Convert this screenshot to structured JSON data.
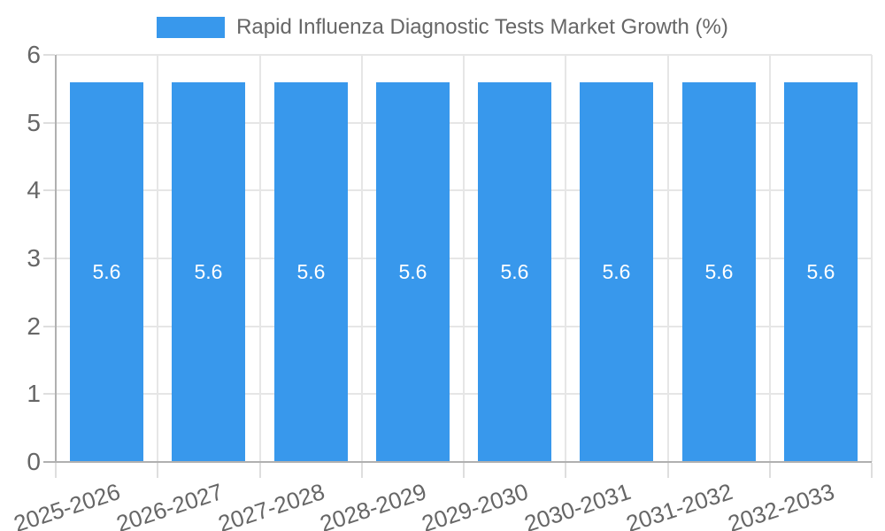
{
  "chart_data": {
    "type": "bar",
    "title": "Rapid Influenza Diagnostic Tests Market Growth (%)",
    "legend_label": "Rapid Influenza Diagnostic Tests Market Growth (%)",
    "legend_position": "top",
    "categories": [
      "2025-2026",
      "2026-2027",
      "2027-2028",
      "2028-2029",
      "2029-2030",
      "2030-2031",
      "2031-2032",
      "2032-2033"
    ],
    "values": [
      5.6,
      5.6,
      5.6,
      5.6,
      5.6,
      5.6,
      5.6,
      5.6
    ],
    "value_labels": [
      "5.6",
      "5.6",
      "5.6",
      "5.6",
      "5.6",
      "5.6",
      "5.6",
      "5.6"
    ],
    "xlabel": "",
    "ylabel": "",
    "ylim": [
      0,
      6
    ],
    "yticks": [
      0,
      1,
      2,
      3,
      4,
      5,
      6
    ],
    "grid": true
  },
  "style": {
    "bar_color": "#3898ec",
    "grid_color": "#e6e6e6",
    "tick_color": "#dedede",
    "axis_color": "#b0b0b0",
    "text_color": "#666666",
    "value_label_color": "#ffffff",
    "background": "#ffffff"
  }
}
